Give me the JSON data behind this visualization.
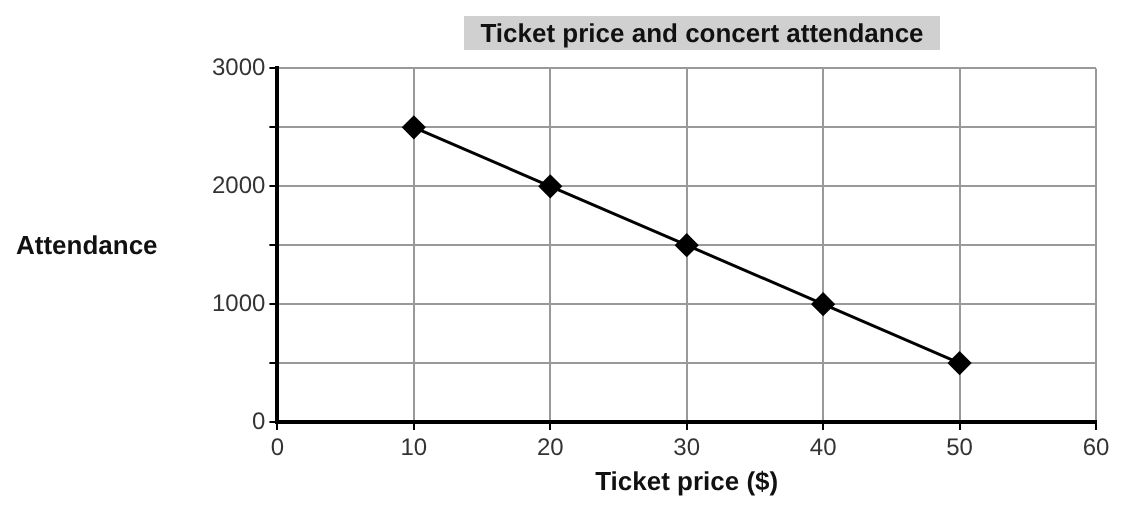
{
  "chart_data": {
    "type": "line",
    "title": "Ticket price and concert attendance",
    "xlabel": "Ticket price ($)",
    "ylabel": "Attendance",
    "series": [
      {
        "color": "#000000",
        "x": [
          10,
          20,
          30,
          40,
          50
        ],
        "values": [
          2500,
          2000,
          1500,
          1000,
          500
        ]
      }
    ],
    "xlim": [
      0,
      60
    ],
    "xticks": [
      0,
      10,
      20,
      30,
      40,
      50,
      60
    ],
    "ylim": [
      0,
      3000
    ],
    "yticks": [
      0,
      {
        "value": 500,
        "label": null
      },
      1000,
      {
        "value": 1500,
        "label": null
      },
      2000,
      {
        "value": 2500,
        "label": null
      },
      3000
    ],
    "grid": true,
    "marker": "diamond",
    "line_style": "solid"
  }
}
